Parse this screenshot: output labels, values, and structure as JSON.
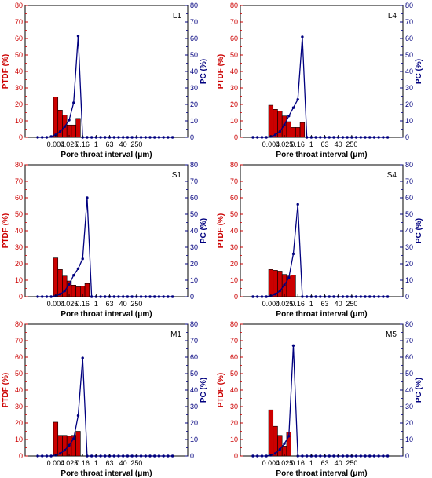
{
  "chart_data": [
    {
      "panel_label": "L1",
      "type": "bar+line",
      "xlabel": "Pore throat interval (μm)",
      "ylabel_left": "PTDF (%)",
      "ylabel_right": "PC (%)",
      "ylim_left": [
        0,
        80
      ],
      "ylim_right": [
        0,
        80
      ],
      "yticks": [
        0,
        10,
        20,
        30,
        40,
        50,
        60,
        70,
        80
      ],
      "xtick_labels": [
        "0.004",
        "0.025",
        "0.16",
        "1",
        "63",
        "40",
        "250"
      ],
      "bar_values": [
        24.5,
        16.5,
        13.5,
        7.5,
        7.5,
        11.5
      ],
      "pc_values": [
        0,
        0,
        0,
        0.5,
        1.5,
        3.5,
        6.5,
        10.5,
        21,
        61.5,
        0,
        0,
        0,
        0,
        0,
        0,
        0,
        0,
        0,
        0,
        0,
        0,
        0,
        0,
        0,
        0,
        0,
        0,
        0,
        0,
        0
      ]
    },
    {
      "panel_label": "L4",
      "type": "bar+line",
      "xlabel": "Pore throat interval (μm)",
      "ylabel_left": "PTDF (%)",
      "ylabel_right": "PC (%)",
      "ylim_left": [
        0,
        80
      ],
      "ylim_right": [
        0,
        80
      ],
      "yticks": [
        0,
        10,
        20,
        30,
        40,
        50,
        60,
        70,
        80
      ],
      "xtick_labels": [
        "0.004",
        "0.025",
        "0.16",
        "1",
        "63",
        "40",
        "250"
      ],
      "bar_values": [
        19.5,
        17,
        16,
        13,
        9.5,
        6,
        6,
        9
      ],
      "pc_values": [
        0,
        0,
        0,
        0,
        0.5,
        1.5,
        3.5,
        7.5,
        13,
        18,
        23,
        61,
        0,
        0,
        0,
        0,
        0,
        0,
        0,
        0,
        0,
        0,
        0,
        0,
        0,
        0,
        0,
        0,
        0,
        0,
        0
      ]
    },
    {
      "panel_label": "S1",
      "type": "bar+line",
      "xlabel": "Pore throat interval (μm)",
      "ylabel_left": "PTDF (%)",
      "ylabel_right": "PC (%)",
      "ylim_left": [
        0,
        80
      ],
      "ylim_right": [
        0,
        80
      ],
      "yticks": [
        0,
        10,
        20,
        30,
        40,
        50,
        60,
        70,
        80
      ],
      "xtick_labels": [
        "0.004",
        "0.025",
        "0.16",
        "1",
        "63",
        "40",
        "250"
      ],
      "bar_values": [
        23.5,
        16.5,
        12.5,
        9.5,
        7,
        6,
        6.5,
        8
      ],
      "pc_values": [
        0,
        0,
        0,
        0,
        0.5,
        1.5,
        3.5,
        7.5,
        13,
        17,
        23,
        60,
        0,
        0,
        0,
        0,
        0,
        0,
        0,
        0,
        0,
        0,
        0,
        0,
        0,
        0,
        0,
        0,
        0,
        0,
        0
      ]
    },
    {
      "panel_label": "S4",
      "type": "bar+line",
      "xlabel": "Pore throat interval (μm)",
      "ylabel_left": "PTDF (%)",
      "ylabel_right": "PC (%)",
      "ylim_left": [
        0,
        80
      ],
      "ylim_right": [
        0,
        80
      ],
      "yticks": [
        0,
        10,
        20,
        30,
        40,
        50,
        60,
        70,
        80
      ],
      "xtick_labels": [
        "0.004",
        "0.025",
        "0.16",
        "1",
        "63",
        "40",
        "250"
      ],
      "bar_values": [
        16.5,
        16,
        15.5,
        13.5,
        12.5,
        13
      ],
      "pc_values": [
        0,
        0,
        0,
        0,
        0.5,
        1.5,
        3.5,
        7,
        11.5,
        26,
        56,
        0,
        0,
        0,
        0,
        0,
        0,
        0,
        0,
        0,
        0,
        0,
        0,
        0,
        0,
        0,
        0,
        0,
        0,
        0,
        0
      ]
    },
    {
      "panel_label": "M1",
      "type": "bar+line",
      "xlabel": "Pore throat interval (μm)",
      "ylabel_left": "PTDF (%)",
      "ylabel_right": "PC (%)",
      "ylim_left": [
        0,
        80
      ],
      "ylim_right": [
        0,
        80
      ],
      "yticks": [
        0,
        10,
        20,
        30,
        40,
        50,
        60,
        70,
        80
      ],
      "xtick_labels": [
        "0.004",
        "0.025",
        "0.16",
        "1",
        "63",
        "40",
        "250"
      ],
      "bar_values": [
        20.5,
        12.5,
        12.5,
        12,
        12.5,
        15
      ],
      "pc_values": [
        0,
        0,
        0,
        0,
        0.5,
        1.5,
        3.5,
        6.5,
        10.5,
        24.5,
        59.5,
        0,
        0,
        0,
        0,
        0,
        0,
        0,
        0,
        0,
        0,
        0,
        0,
        0,
        0,
        0,
        0,
        0,
        0,
        0,
        0
      ]
    },
    {
      "panel_label": "M5",
      "type": "bar+line",
      "xlabel": "Pore throat interval (μm)",
      "ylabel_left": "PTDF (%)",
      "ylabel_right": "PC (%)",
      "ylim_left": [
        0,
        80
      ],
      "ylim_right": [
        0,
        80
      ],
      "yticks": [
        0,
        10,
        20,
        30,
        40,
        50,
        60,
        70,
        80
      ],
      "xtick_labels": [
        "0.004",
        "0.025",
        "0.16",
        "1",
        "63",
        "40",
        "250"
      ],
      "bar_values": [
        28,
        18,
        12.5,
        6,
        14.5
      ],
      "pc_values": [
        0,
        0,
        0,
        0,
        0.5,
        1.5,
        4,
        7.5,
        12,
        67,
        0,
        0,
        0,
        0,
        0,
        0,
        0,
        0,
        0,
        0,
        0,
        0,
        0,
        0,
        0,
        0,
        0,
        0,
        0,
        0,
        0
      ]
    }
  ]
}
